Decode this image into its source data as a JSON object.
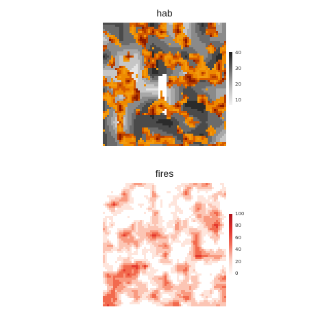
{
  "panels": [
    {
      "title": "hab",
      "legend_ticks": [
        "40",
        "30",
        "20",
        "10"
      ],
      "legend_colors": [
        "#1e1e1e",
        "#6a6a6a",
        "#bdbdbd",
        "#f2f2f2"
      ]
    },
    {
      "title": "fires",
      "legend_ticks": [
        "100",
        "80",
        "60",
        "40",
        "20",
        "0"
      ],
      "legend_colors": [
        "#b0121b",
        "#e0302b",
        "#f2705c",
        "#fbd0c4",
        "#ffffff"
      ]
    }
  ],
  "layer_colors": {
    "hab_gray": [
      "#2b2b2b",
      "#4a4a4a",
      "#6b6b6b",
      "#8a8a8a",
      "#a8a8a8",
      "#c6c6c6",
      "#e4e4e4"
    ],
    "fire_overlay": [
      "#8b1a00",
      "#b33c00",
      "#d65c00",
      "#ee8a00",
      "#f39b0c"
    ],
    "fires": [
      "#a50f15",
      "#cb181d",
      "#e4392f",
      "#f26a4e",
      "#f99a80",
      "#fcc5b4",
      "#fee5dc"
    ]
  }
}
